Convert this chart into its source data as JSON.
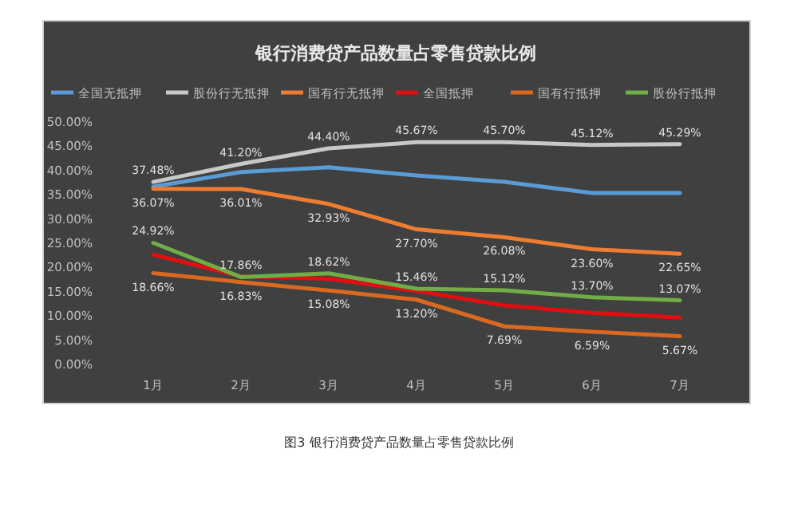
{
  "chart_data": {
    "type": "line",
    "title": "银行消费贷产品数量占零售贷款比例",
    "categories": [
      "1月",
      "2月",
      "3月",
      "4月",
      "5月",
      "6月",
      "7月"
    ],
    "series": [
      {
        "name": "全国无抵押",
        "color": "#5b9bd5",
        "values": [
          36.5,
          39.5,
          40.5,
          38.8,
          37.5,
          35.2,
          35.2
        ]
      },
      {
        "name": "股份行无抵押",
        "color": "#c8c8c8",
        "values": [
          37.48,
          41.2,
          44.4,
          45.67,
          45.7,
          45.12,
          45.29
        ],
        "value_labels": [
          "37.48%",
          "41.20%",
          "44.40%",
          "45.67%",
          "45.70%",
          "45.12%",
          "45.29%"
        ]
      },
      {
        "name": "国有行无抵押",
        "color": "#ed7d31",
        "values": [
          36.07,
          36.01,
          32.93,
          27.7,
          26.08,
          23.6,
          22.65
        ],
        "value_labels": [
          "36.07%",
          "36.01%",
          "32.93%",
          "27.70%",
          "26.08%",
          "23.60%",
          "22.65%"
        ]
      },
      {
        "name": "全国抵押",
        "color": "#e01010",
        "values": [
          22.5,
          18.0,
          17.5,
          15.0,
          12.0,
          10.5,
          9.5
        ]
      },
      {
        "name": "国有行抵押",
        "color": "#d9691f",
        "values": [
          18.66,
          16.83,
          15.08,
          13.2,
          7.69,
          6.59,
          5.67
        ],
        "value_labels": [
          "18.66%",
          "16.83%",
          "15.08%",
          "13.20%",
          "7.69%",
          "6.59%",
          "5.67%"
        ]
      },
      {
        "name": "股份行抵押",
        "color": "#70ad47",
        "values": [
          24.92,
          17.86,
          18.62,
          15.46,
          15.12,
          13.7,
          13.07
        ],
        "value_labels": [
          "24.92%",
          "17.86%",
          "18.62%",
          "15.46%",
          "15.12%",
          "13.70%",
          "13.07%"
        ]
      }
    ],
    "ylim": [
      0,
      50
    ],
    "yticks": [
      {
        "value": 0,
        "label": "0.00%"
      },
      {
        "value": 5,
        "label": "5.00%"
      },
      {
        "value": 10,
        "label": "10.00%"
      },
      {
        "value": 15,
        "label": "15.00%"
      },
      {
        "value": 20,
        "label": "20.00%"
      },
      {
        "value": 25,
        "label": "25.00%"
      },
      {
        "value": 30,
        "label": "30.00%"
      },
      {
        "value": 35,
        "label": "35.00%"
      },
      {
        "value": 40,
        "label": "40.00%"
      },
      {
        "value": 45,
        "label": "45.00%"
      },
      {
        "value": 50,
        "label": "50.00%"
      }
    ],
    "legend": "top",
    "annotations": [
      "图3 银行消费贷产品数量占零售贷款比例"
    ]
  }
}
